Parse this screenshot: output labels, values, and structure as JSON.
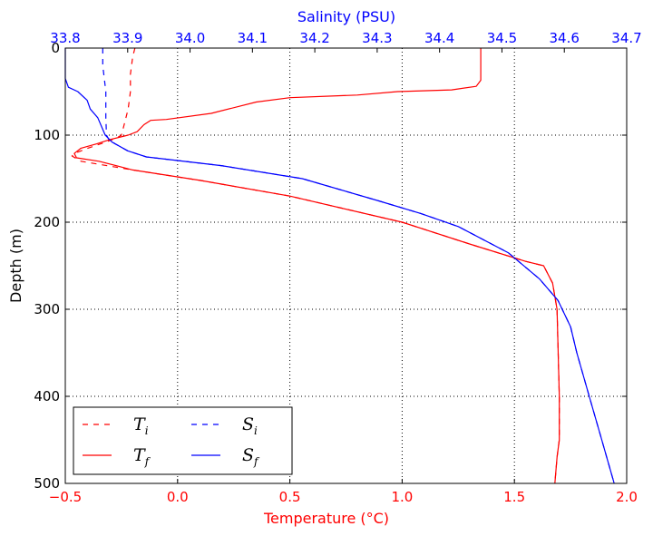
{
  "chart_data": {
    "type": "line",
    "bottom_axis": {
      "label": "Temperature (°C)",
      "lim": [
        -0.5,
        2.0
      ],
      "ticks": [
        -0.5,
        0.0,
        0.5,
        1.0,
        1.5,
        2.0
      ],
      "tick_labels": [
        "−0.5",
        "0.0",
        "0.5",
        "1.0",
        "1.5",
        "2.0"
      ],
      "color": "#ff0000"
    },
    "top_axis": {
      "label": "Salinity (PSU)",
      "lim": [
        33.8,
        34.7
      ],
      "ticks": [
        33.8,
        33.9,
        34.0,
        34.1,
        34.2,
        34.3,
        34.4,
        34.5,
        34.6,
        34.7
      ],
      "tick_labels": [
        "33.8",
        "33.9",
        "34.0",
        "34.1",
        "34.2",
        "34.3",
        "34.4",
        "34.5",
        "34.6",
        "34.7"
      ],
      "color": "#0000ff"
    },
    "y_axis": {
      "label": "Depth (m)",
      "lim": [
        0,
        500
      ],
      "inverted": true,
      "ticks": [
        0,
        100,
        200,
        300,
        400,
        500
      ],
      "tick_labels": [
        "0",
        "100",
        "200",
        "300",
        "400",
        "500"
      ]
    },
    "grid": true,
    "legend_placement": "lower-left",
    "series": [
      {
        "name": "Ti",
        "base": "T",
        "sub": "i",
        "axis": "bottom",
        "color": "#ff0000",
        "dashed": true,
        "points": [
          [
            -0.19,
            0
          ],
          [
            -0.2,
            10
          ],
          [
            -0.21,
            30
          ],
          [
            -0.21,
            50
          ],
          [
            -0.22,
            70
          ],
          [
            -0.24,
            90
          ],
          [
            -0.25,
            100
          ],
          [
            -0.27,
            103
          ],
          [
            -0.32,
            108
          ],
          [
            -0.4,
            115
          ],
          [
            -0.46,
            121
          ],
          [
            -0.47,
            124
          ],
          [
            -0.43,
            130
          ],
          [
            -0.2,
            140
          ],
          [
            0.1,
            152
          ],
          [
            0.5,
            170
          ],
          [
            1.0,
            200
          ],
          [
            1.3,
            225
          ],
          [
            1.55,
            245
          ],
          [
            1.63,
            250
          ],
          [
            1.67,
            270
          ],
          [
            1.69,
            300
          ],
          [
            1.7,
            400
          ],
          [
            1.7,
            450
          ],
          [
            1.69,
            470
          ],
          [
            1.68,
            500
          ]
        ]
      },
      {
        "name": "Tf",
        "base": "T",
        "sub": "f",
        "axis": "bottom",
        "color": "#ff0000",
        "dashed": false,
        "points": [
          [
            1.35,
            0
          ],
          [
            1.35,
            37
          ],
          [
            1.33,
            44
          ],
          [
            1.22,
            48
          ],
          [
            0.98,
            50
          ],
          [
            0.8,
            54
          ],
          [
            0.5,
            57
          ],
          [
            0.35,
            62
          ],
          [
            0.15,
            75
          ],
          [
            -0.05,
            82
          ],
          [
            -0.12,
            83
          ],
          [
            -0.15,
            88
          ],
          [
            -0.18,
            96
          ],
          [
            -0.22,
            100
          ],
          [
            -0.3,
            105
          ],
          [
            -0.36,
            110
          ],
          [
            -0.43,
            115
          ],
          [
            -0.46,
            121
          ],
          [
            -0.45,
            126
          ],
          [
            -0.35,
            130
          ],
          [
            -0.2,
            140
          ],
          [
            0.1,
            152
          ],
          [
            0.5,
            170
          ],
          [
            1.0,
            200
          ],
          [
            1.3,
            225
          ],
          [
            1.55,
            245
          ],
          [
            1.63,
            250
          ],
          [
            1.67,
            270
          ],
          [
            1.69,
            300
          ],
          [
            1.7,
            400
          ],
          [
            1.7,
            450
          ],
          [
            1.69,
            470
          ],
          [
            1.68,
            500
          ]
        ]
      },
      {
        "name": "Si",
        "base": "S",
        "sub": "i",
        "axis": "top",
        "color": "#0000ff",
        "dashed": true,
        "points": [
          [
            33.86,
            0
          ],
          [
            33.86,
            20
          ],
          [
            33.865,
            50
          ],
          [
            33.865,
            80
          ],
          [
            33.866,
            100
          ],
          [
            33.87,
            105
          ],
          [
            33.88,
            110
          ],
          [
            33.9,
            118
          ],
          [
            33.93,
            125
          ],
          [
            34.05,
            135
          ],
          [
            34.18,
            150
          ],
          [
            34.3,
            175
          ],
          [
            34.37,
            190
          ],
          [
            34.43,
            205
          ],
          [
            34.51,
            235
          ],
          [
            34.56,
            265
          ],
          [
            34.59,
            290
          ],
          [
            34.61,
            320
          ],
          [
            34.62,
            350
          ],
          [
            34.64,
            400
          ],
          [
            34.66,
            450
          ],
          [
            34.68,
            500
          ]
        ]
      },
      {
        "name": "Sf",
        "base": "S",
        "sub": "f",
        "axis": "top",
        "color": "#0000ff",
        "dashed": false,
        "points": [
          [
            33.8,
            0
          ],
          [
            33.8,
            35
          ],
          [
            33.805,
            45
          ],
          [
            33.82,
            50
          ],
          [
            33.835,
            60
          ],
          [
            33.84,
            70
          ],
          [
            33.852,
            80
          ],
          [
            33.858,
            90
          ],
          [
            33.864,
            100
          ],
          [
            33.875,
            108
          ],
          [
            33.9,
            118
          ],
          [
            33.93,
            125
          ],
          [
            34.05,
            135
          ],
          [
            34.18,
            150
          ],
          [
            34.3,
            175
          ],
          [
            34.37,
            190
          ],
          [
            34.43,
            205
          ],
          [
            34.51,
            235
          ],
          [
            34.56,
            265
          ],
          [
            34.59,
            290
          ],
          [
            34.61,
            320
          ],
          [
            34.62,
            350
          ],
          [
            34.64,
            400
          ],
          [
            34.66,
            450
          ],
          [
            34.68,
            500
          ]
        ]
      }
    ]
  }
}
